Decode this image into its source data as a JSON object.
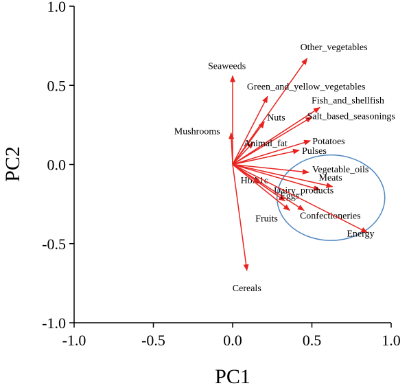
{
  "chart_data": {
    "type": "biplot",
    "xlabel": "PC1",
    "ylabel": "PC2",
    "xlim": [
      -1.0,
      1.0
    ],
    "ylim": [
      -1.0,
      1.0
    ],
    "xticks": [
      "-1.0",
      "-0.5",
      "0.0",
      "0.5",
      "1.0"
    ],
    "yticks": [
      "-1.0",
      "-0.5",
      "0.0",
      "0.5",
      "1.0"
    ],
    "grid": false,
    "arrow_color": "#e8231f",
    "ellipse_color": "#4f86c0",
    "vectors": [
      {
        "name": "Seaweeds",
        "x": 0.0,
        "y": 0.56
      },
      {
        "name": "Mushrooms",
        "x": -0.01,
        "y": 0.2
      },
      {
        "name": "Other_vegetables",
        "x": 0.47,
        "y": 0.67
      },
      {
        "name": "Green_and_yellow_vegetables",
        "x": 0.22,
        "y": 0.43
      },
      {
        "name": "Nuts",
        "x": 0.2,
        "y": 0.27
      },
      {
        "name": "Fish_and_shellfish",
        "x": 0.55,
        "y": 0.36
      },
      {
        "name": "Salt_based_seasonings",
        "x": 0.5,
        "y": 0.3
      },
      {
        "name": "Animal_fat",
        "x": 0.13,
        "y": 0.14
      },
      {
        "name": "Potatoes",
        "x": 0.49,
        "y": 0.15
      },
      {
        "name": "Pulses",
        "x": 0.42,
        "y": 0.09
      },
      {
        "name": "Vegetable_oils",
        "x": 0.48,
        "y": -0.05
      },
      {
        "name": "Meats",
        "x": 0.63,
        "y": -0.14
      },
      {
        "name": "Dairy_products",
        "x": 0.55,
        "y": -0.16
      },
      {
        "name": "HbA1c",
        "x": 0.18,
        "y": -0.12
      },
      {
        "name": "Eggs",
        "x": 0.33,
        "y": -0.23
      },
      {
        "name": "Fruits",
        "x": 0.36,
        "y": -0.29
      },
      {
        "name": "Confectioneries",
        "x": 0.45,
        "y": -0.29
      },
      {
        "name": "Energy",
        "x": 0.85,
        "y": -0.43
      },
      {
        "name": "Cereals",
        "x": 0.09,
        "y": -0.67
      }
    ],
    "ellipse": {
      "cx": 0.62,
      "cy": -0.21,
      "rx": 0.34,
      "ry": 0.27
    }
  }
}
